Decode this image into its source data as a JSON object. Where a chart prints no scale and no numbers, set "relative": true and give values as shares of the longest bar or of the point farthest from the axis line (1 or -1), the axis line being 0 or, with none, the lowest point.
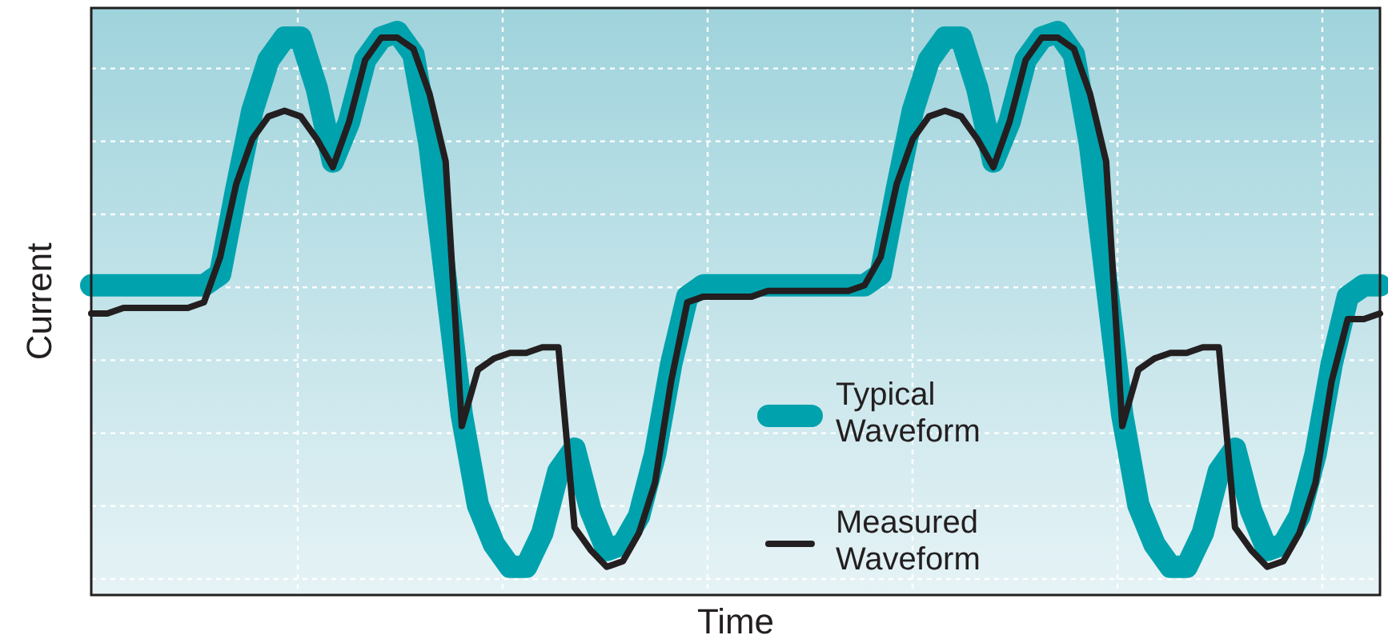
{
  "chart_data": {
    "type": "line",
    "relative": true,
    "xlabel": "Time",
    "ylabel": "Current",
    "grid": true,
    "legend": "bottom right",
    "marker": "none",
    "line_style": "solid",
    "categories": [
      null,
      null,
      null,
      null,
      null,
      null,
      null,
      null,
      null,
      null,
      null,
      null,
      null,
      null,
      null,
      null,
      null,
      null,
      null,
      null,
      null,
      null,
      null,
      null,
      null,
      null,
      null,
      null,
      null,
      null,
      null,
      null,
      null,
      null,
      null,
      null,
      null,
      null,
      null,
      null,
      null,
      null,
      null,
      null,
      null,
      null,
      null,
      null,
      null,
      null,
      null,
      null,
      null,
      null,
      null,
      null,
      null,
      null,
      null,
      null,
      null,
      null,
      null,
      null,
      null,
      null,
      null,
      null,
      null,
      null,
      null,
      null,
      null,
      null,
      null,
      null,
      null,
      null,
      null,
      null,
      null
    ],
    "series": [
      {
        "name": "Typical Waveform",
        "color": "#00a3ad",
        "values": [
          0.55,
          0.55,
          0.55,
          0.55,
          0.55,
          0.55,
          0.55,
          0.55,
          0.57,
          0.72,
          0.86,
          0.95,
          0.99,
          0.99,
          0.9,
          0.77,
          0.84,
          0.95,
          0.99,
          1,
          0.96,
          0.8,
          0.56,
          0.32,
          0.16,
          0.09,
          0.05,
          0.05,
          0.11,
          0.22,
          0.26,
          0.15,
          0.08,
          0.09,
          0.14,
          0.25,
          0.41,
          0.53,
          0.55,
          0.55,
          0.55,
          0.55,
          0.55,
          0.55,
          0.55,
          0.55,
          0.55,
          0.55,
          0.55,
          0.57,
          0.72,
          0.86,
          0.95,
          0.99,
          0.99,
          0.9,
          0.77,
          0.84,
          0.95,
          0.99,
          1,
          0.96,
          0.8,
          0.56,
          0.32,
          0.16,
          0.09,
          0.05,
          0.05,
          0.11,
          0.22,
          0.26,
          0.15,
          0.08,
          0.09,
          0.14,
          0.25,
          0.41,
          0.53,
          0.55,
          0.55
        ]
      },
      {
        "name": "Measured Waveform",
        "color": "#231f20",
        "values": [
          0.5,
          0.5,
          0.51,
          0.51,
          0.51,
          0.51,
          0.51,
          0.52,
          0.6,
          0.73,
          0.81,
          0.85,
          0.86,
          0.85,
          0.81,
          0.76,
          0.84,
          0.95,
          0.99,
          0.99,
          0.97,
          0.89,
          0.77,
          0.3,
          0.4,
          0.42,
          0.43,
          0.43,
          0.44,
          0.44,
          0.12,
          0.08,
          0.05,
          0.06,
          0.11,
          0.2,
          0.38,
          0.52,
          0.53,
          0.53,
          0.53,
          0.53,
          0.54,
          0.54,
          0.54,
          0.54,
          0.54,
          0.54,
          0.55,
          0.6,
          0.73,
          0.81,
          0.85,
          0.86,
          0.85,
          0.81,
          0.76,
          0.84,
          0.95,
          0.99,
          0.99,
          0.97,
          0.89,
          0.77,
          0.3,
          0.4,
          0.42,
          0.43,
          0.43,
          0.44,
          0.44,
          0.12,
          0.08,
          0.05,
          0.06,
          0.11,
          0.2,
          0.38,
          0.49,
          0.49,
          0.5
        ]
      }
    ]
  }
}
